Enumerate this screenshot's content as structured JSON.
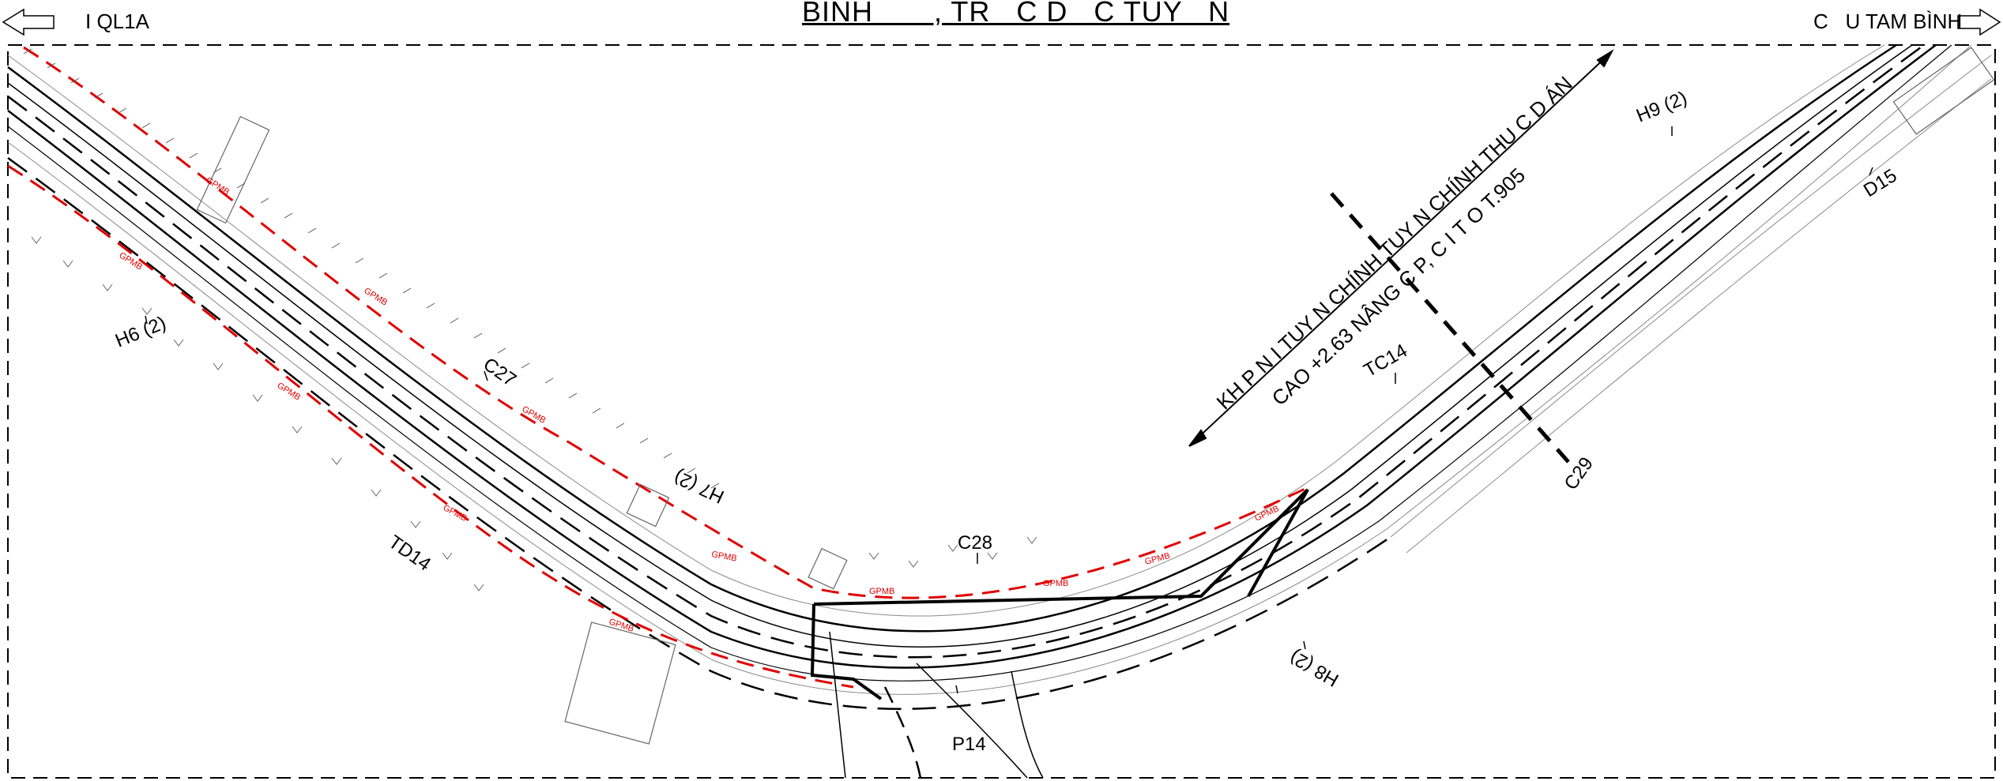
{
  "header": {
    "title": "BÌNH       , TR   C D   C TUY   N",
    "left_direction": "I QL1A",
    "right_direction": "C   U TAM BÌNH"
  },
  "labels": {
    "h6": "H6 (2)",
    "c27": "C27",
    "td14": "TD14",
    "h7": "H7 (2)",
    "c28": "C28",
    "p14": "P14",
    "tc14": "TC14",
    "h8": "H8 (2)",
    "c29": "C29",
    "h9": "H9 (2)",
    "d15": "D15",
    "note_line1": "KH   P N   I TUY   N CHÍNH TUY   N CHÍNH THU   C D   ÁN",
    "note_line2": "CAO       +2.63         NÂNG C   P, C   I T   O    T.905",
    "gpmb": "GPMB"
  },
  "colors": {
    "line": "#000000",
    "grey": "#8a8a8a",
    "gpmb": "#e00000"
  }
}
